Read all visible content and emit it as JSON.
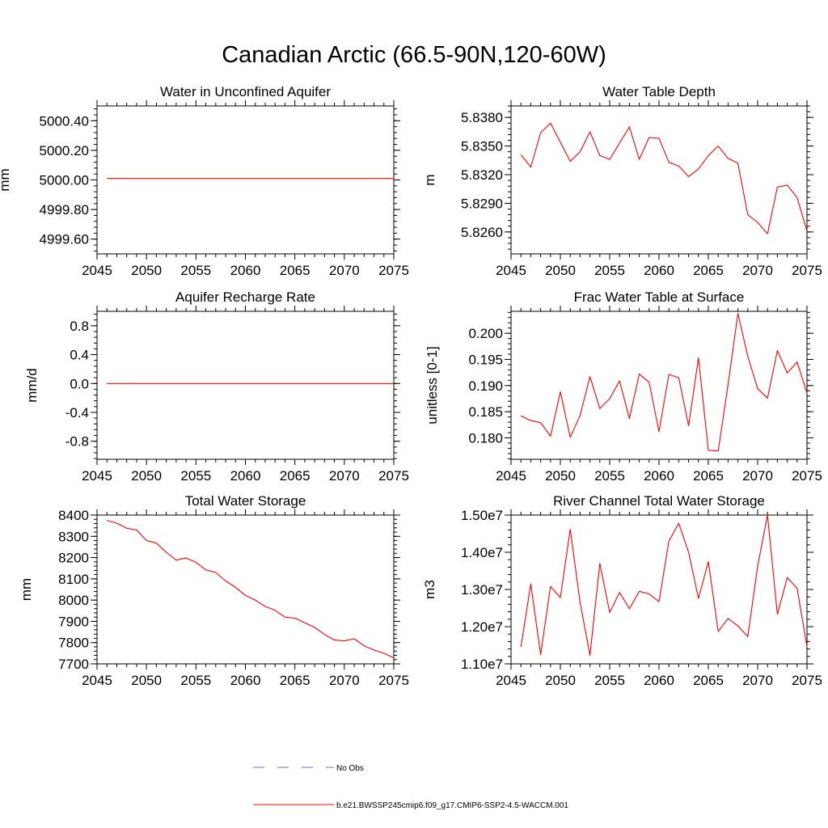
{
  "title": "Canadian Arctic (66.5-90N,120-60W)",
  "colors": {
    "model": "#ff0000",
    "obs": "#6c6cd0",
    "axis": "#000000"
  },
  "legend": [
    {
      "label": "No Obs",
      "style": "dashed",
      "color": "#6c6cd0"
    },
    {
      "label": "b.e21.BWSSP245cmip6.f09_g17.CMIP6-SSP2-4.5-WACCM.001",
      "style": "solid",
      "color": "#ff0000"
    }
  ],
  "chart_data": [
    {
      "type": "line",
      "title": "Water in Unconfined Aquifer",
      "ylabel": "mm",
      "xlim": [
        2045,
        2075
      ],
      "ylim": [
        4999.5,
        5000.5
      ],
      "xticks": [
        "2045",
        "2050",
        "2055",
        "2060",
        "2065",
        "2070",
        "2075"
      ],
      "yticks": [
        {
          "v": 4999.6,
          "label": "4999.60"
        },
        {
          "v": 4999.8,
          "label": "4999.80"
        },
        {
          "v": 5000.0,
          "label": "5000.00"
        },
        {
          "v": 5000.2,
          "label": "5000.20"
        },
        {
          "v": 5000.4,
          "label": "5000.40"
        }
      ],
      "x": [
        2046,
        2047,
        2048,
        2049,
        2050,
        2051,
        2052,
        2053,
        2054,
        2055,
        2056,
        2057,
        2058,
        2059,
        2060,
        2061,
        2062,
        2063,
        2064,
        2065,
        2066,
        2067,
        2068,
        2069,
        2070,
        2071,
        2072,
        2073,
        2074,
        2075
      ],
      "series": [
        {
          "values": [
            5000.01,
            5000.01,
            5000.01,
            5000.01,
            5000.01,
            5000.01,
            5000.01,
            5000.01,
            5000.01,
            5000.01,
            5000.01,
            5000.01,
            5000.01,
            5000.01,
            5000.01,
            5000.01,
            5000.01,
            5000.01,
            5000.01,
            5000.01,
            5000.01,
            5000.01,
            5000.01,
            5000.01,
            5000.01,
            5000.01,
            5000.01,
            5000.01,
            5000.01,
            5000.01
          ]
        }
      ]
    },
    {
      "type": "line",
      "title": "Water Table Depth",
      "ylabel": "m",
      "xlim": [
        2045,
        2075
      ],
      "ylim": [
        5.8237,
        5.8392
      ],
      "xticks": [
        "2045",
        "2050",
        "2055",
        "2060",
        "2065",
        "2070",
        "2075"
      ],
      "yticks": [
        {
          "v": 5.826,
          "label": "5.8260"
        },
        {
          "v": 5.829,
          "label": "5.8290"
        },
        {
          "v": 5.832,
          "label": "5.8320"
        },
        {
          "v": 5.835,
          "label": "5.8350"
        },
        {
          "v": 5.838,
          "label": "5.8380"
        }
      ],
      "x": [
        2046,
        2047,
        2048,
        2049,
        2050,
        2051,
        2052,
        2053,
        2054,
        2055,
        2056,
        2057,
        2058,
        2059,
        2060,
        2061,
        2062,
        2063,
        2064,
        2065,
        2066,
        2067,
        2068,
        2069,
        2070,
        2071,
        2072,
        2073,
        2074,
        2075
      ],
      "series": [
        {
          "values": [
            5.8341,
            5.8328,
            5.8364,
            5.8374,
            5.8354,
            5.8334,
            5.8344,
            5.8365,
            5.834,
            5.8336,
            5.8353,
            5.837,
            5.8336,
            5.8359,
            5.8358,
            5.8333,
            5.8329,
            5.8318,
            5.8326,
            5.834,
            5.835,
            5.8337,
            5.8332,
            5.8278,
            5.827,
            5.8258,
            5.8307,
            5.8309,
            5.8296,
            5.8261
          ]
        }
      ]
    },
    {
      "type": "line",
      "title": "Aquifer Recharge Rate",
      "ylabel": "mm/d",
      "xlim": [
        2045,
        2075
      ],
      "ylim": [
        -1.05,
        1.0
      ],
      "xticks": [
        "2045",
        "2050",
        "2055",
        "2060",
        "2065",
        "2070",
        "2075"
      ],
      "yticks": [
        {
          "v": -0.8,
          "label": "-0.8"
        },
        {
          "v": -0.4,
          "label": "-0.4"
        },
        {
          "v": 0.0,
          "label": "0.0"
        },
        {
          "v": 0.4,
          "label": "0.4"
        },
        {
          "v": 0.8,
          "label": "0.8"
        }
      ],
      "x": [
        2046,
        2047,
        2048,
        2049,
        2050,
        2051,
        2052,
        2053,
        2054,
        2055,
        2056,
        2057,
        2058,
        2059,
        2060,
        2061,
        2062,
        2063,
        2064,
        2065,
        2066,
        2067,
        2068,
        2069,
        2070,
        2071,
        2072,
        2073,
        2074,
        2075
      ],
      "series": [
        {
          "values": [
            0,
            0,
            0,
            0,
            0,
            0,
            0,
            0,
            0,
            0,
            0,
            0,
            0,
            0,
            0,
            0,
            0,
            0,
            0,
            0,
            0,
            0,
            0,
            0,
            0,
            0,
            0,
            0,
            0,
            0
          ]
        }
      ]
    },
    {
      "type": "line",
      "title": "Frac Water Table at Surface",
      "ylabel": "unitless [0-1]",
      "xlim": [
        2045,
        2075
      ],
      "ylim": [
        0.1759,
        0.2042
      ],
      "xticks": [
        "2045",
        "2050",
        "2055",
        "2060",
        "2065",
        "2070",
        "2075"
      ],
      "yticks": [
        {
          "v": 0.18,
          "label": "0.180"
        },
        {
          "v": 0.185,
          "label": "0.185"
        },
        {
          "v": 0.19,
          "label": "0.190"
        },
        {
          "v": 0.195,
          "label": "0.195"
        },
        {
          "v": 0.2,
          "label": "0.200"
        }
      ],
      "x": [
        2046,
        2047,
        2048,
        2049,
        2050,
        2051,
        2052,
        2053,
        2054,
        2055,
        2056,
        2057,
        2058,
        2059,
        2060,
        2061,
        2062,
        2063,
        2064,
        2065,
        2066,
        2067,
        2068,
        2069,
        2070,
        2071,
        2072,
        2073,
        2074,
        2075
      ],
      "series": [
        {
          "values": [
            0.1842,
            0.1833,
            0.1829,
            0.1803,
            0.1888,
            0.1801,
            0.1843,
            0.1917,
            0.1856,
            0.1875,
            0.1909,
            0.1837,
            0.1922,
            0.1906,
            0.1812,
            0.1921,
            0.1915,
            0.1823,
            0.1953,
            0.1776,
            0.1775,
            0.1902,
            0.2038,
            0.1956,
            0.1894,
            0.1876,
            0.1967,
            0.1924,
            0.1945,
            0.1886
          ]
        }
      ]
    },
    {
      "type": "line",
      "title": "Total Water Storage",
      "ylabel": "mm",
      "xlim": [
        2045,
        2075
      ],
      "ylim": [
        7700,
        8400
      ],
      "xticks": [
        "2045",
        "2050",
        "2055",
        "2060",
        "2065",
        "2070",
        "2075"
      ],
      "yticks": [
        {
          "v": 7700,
          "label": "7700"
        },
        {
          "v": 7800,
          "label": "7800"
        },
        {
          "v": 7900,
          "label": "7900"
        },
        {
          "v": 8000,
          "label": "8000"
        },
        {
          "v": 8100,
          "label": "8100"
        },
        {
          "v": 8200,
          "label": "8200"
        },
        {
          "v": 8300,
          "label": "8300"
        },
        {
          "v": 8400,
          "label": "8400"
        }
      ],
      "x": [
        2046,
        2047,
        2048,
        2049,
        2050,
        2051,
        2052,
        2053,
        2054,
        2055,
        2056,
        2057,
        2058,
        2059,
        2060,
        2061,
        2062,
        2063,
        2064,
        2065,
        2066,
        2067,
        2068,
        2069,
        2070,
        2071,
        2072,
        2073,
        2074,
        2075
      ],
      "series": [
        {
          "values": [
            8375,
            8362,
            8338,
            8330,
            8280,
            8268,
            8225,
            8188,
            8198,
            8178,
            8142,
            8130,
            8090,
            8060,
            8022,
            8000,
            7970,
            7952,
            7920,
            7915,
            7893,
            7872,
            7838,
            7812,
            7808,
            7818,
            7785,
            7765,
            7750,
            7728
          ]
        }
      ]
    },
    {
      "type": "line",
      "title": "River Channel Total Water Storage",
      "ylabel": "m3",
      "xlim": [
        2045,
        2075
      ],
      "ylim": [
        11000000,
        15000000
      ],
      "xticks": [
        "2045",
        "2050",
        "2055",
        "2060",
        "2065",
        "2070",
        "2075"
      ],
      "yticks": [
        {
          "v": 11000000,
          "label": "1.10e7"
        },
        {
          "v": 12000000,
          "label": "1.20e7"
        },
        {
          "v": 13000000,
          "label": "1.30e7"
        },
        {
          "v": 14000000,
          "label": "1.40e7"
        },
        {
          "v": 15000000,
          "label": "1.50e7"
        }
      ],
      "x": [
        2046,
        2047,
        2048,
        2049,
        2050,
        2051,
        2052,
        2053,
        2054,
        2055,
        2056,
        2057,
        2058,
        2059,
        2060,
        2061,
        2062,
        2063,
        2064,
        2065,
        2066,
        2067,
        2068,
        2069,
        2070,
        2071,
        2072,
        2073,
        2074,
        2075
      ],
      "series": [
        {
          "values": [
            11450000,
            13150000,
            11250000,
            13080000,
            12780000,
            14620000,
            12650000,
            11230000,
            13700000,
            12380000,
            12920000,
            12480000,
            12950000,
            12880000,
            12670000,
            14300000,
            14780000,
            14000000,
            12760000,
            13750000,
            11870000,
            12220000,
            12020000,
            11730000,
            13630000,
            15000000,
            12330000,
            13320000,
            13030000,
            11460000
          ]
        }
      ]
    }
  ]
}
